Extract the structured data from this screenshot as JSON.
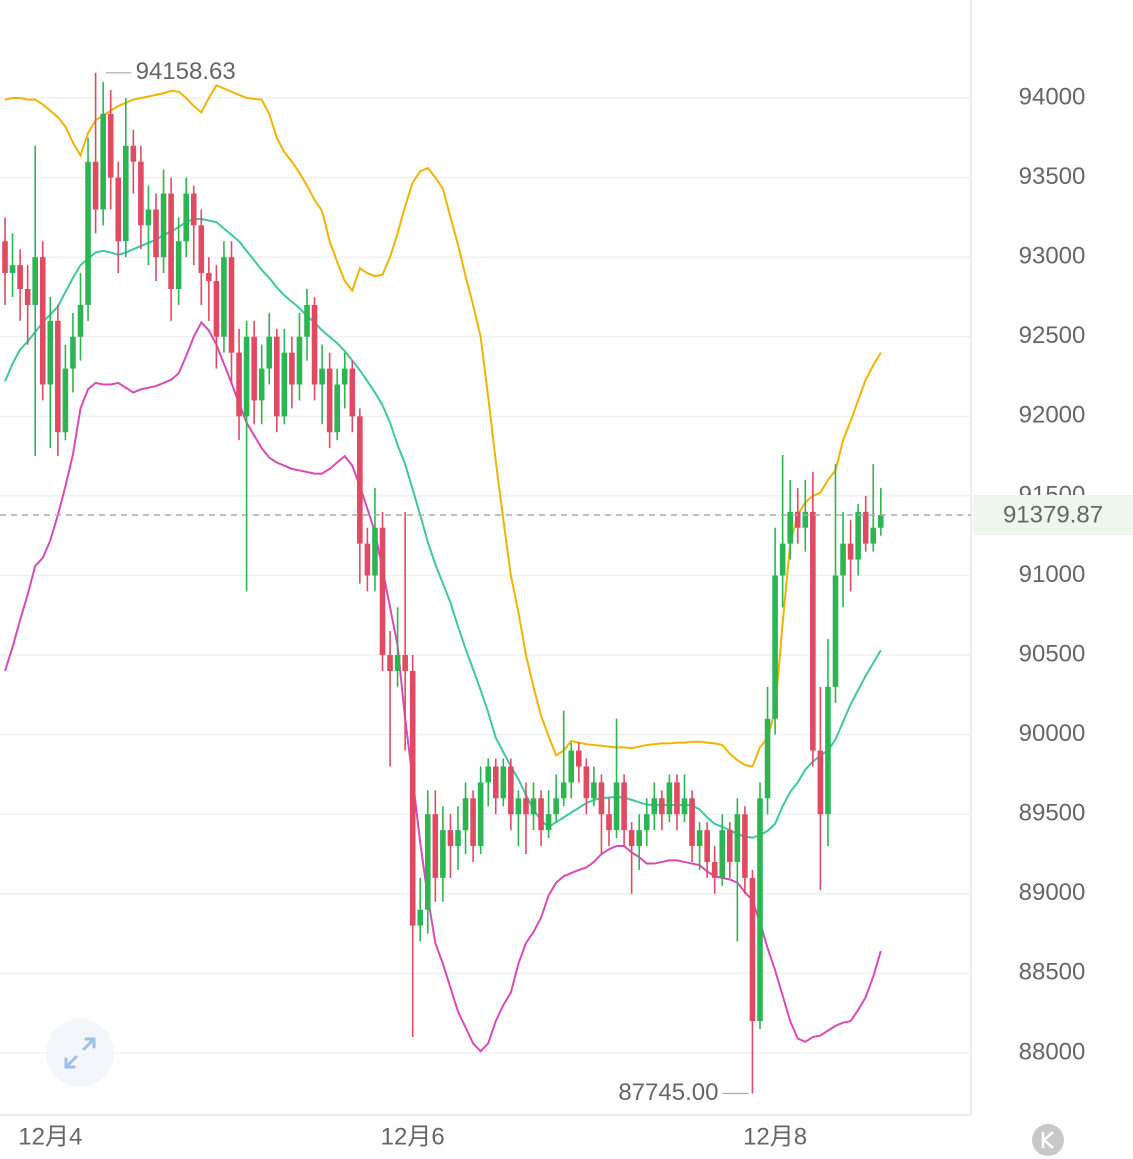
{
  "chart_data": {
    "type": "candlestick",
    "ylim": [
      87610,
      94616
    ],
    "yticks": [
      88000,
      88500,
      89000,
      89500,
      90000,
      90500,
      91000,
      91500,
      92000,
      92500,
      93000,
      93500,
      94000
    ],
    "grid": true,
    "up_color": "#2db553",
    "down_color": "#e04a63",
    "categories": [
      null,
      null,
      null,
      null,
      null,
      null,
      "12月4",
      null,
      null,
      null,
      null,
      null,
      null,
      null,
      null,
      null,
      null,
      null,
      null,
      null,
      null,
      null,
      null,
      null,
      null,
      null,
      null,
      null,
      null,
      null,
      null,
      null,
      null,
      null,
      null,
      null,
      null,
      null,
      null,
      null,
      null,
      null,
      null,
      null,
      null,
      null,
      null,
      null,
      null,
      null,
      null,
      null,
      null,
      null,
      "12月6",
      null,
      null,
      null,
      null,
      null,
      null,
      null,
      null,
      null,
      null,
      null,
      null,
      null,
      null,
      null,
      null,
      null,
      null,
      null,
      null,
      null,
      null,
      null,
      null,
      null,
      null,
      null,
      null,
      null,
      null,
      null,
      null,
      null,
      null,
      null,
      null,
      null,
      null,
      null,
      null,
      null,
      null,
      null,
      null,
      null,
      null,
      null,
      "12月8",
      null,
      null,
      null,
      null,
      null,
      null,
      null,
      null,
      null,
      null,
      null,
      null,
      null,
      null
    ],
    "ohlc": [
      [
        93100,
        93250,
        92700,
        92900
      ],
      [
        92900,
        93150,
        92750,
        92950
      ],
      [
        92950,
        93050,
        92600,
        92800
      ],
      [
        92800,
        92950,
        92450,
        92700
      ],
      [
        92700,
        93700,
        91750,
        93000
      ],
      [
        93000,
        93100,
        92100,
        92200
      ],
      [
        92200,
        92750,
        91800,
        92600
      ],
      [
        92600,
        92700,
        91750,
        91900
      ],
      [
        91900,
        92450,
        91850,
        92300
      ],
      [
        92300,
        92650,
        92150,
        92500
      ],
      [
        92500,
        92900,
        92350,
        92700
      ],
      [
        92700,
        93750,
        92600,
        93600
      ],
      [
        93600,
        94158.63,
        93150,
        93300
      ],
      [
        93300,
        94100,
        93200,
        93900
      ],
      [
        93900,
        94050,
        93300,
        93500
      ],
      [
        93500,
        93600,
        92900,
        93100
      ],
      [
        93100,
        94000,
        93000,
        93700
      ],
      [
        93700,
        93800,
        93400,
        93600
      ],
      [
        93600,
        93700,
        93050,
        93200
      ],
      [
        93200,
        93450,
        92950,
        93300
      ],
      [
        93300,
        93400,
        92850,
        93000
      ],
      [
        93000,
        93550,
        92900,
        93400
      ],
      [
        93400,
        93500,
        92600,
        92800
      ],
      [
        92800,
        93250,
        92700,
        93100
      ],
      [
        93100,
        93500,
        93000,
        93400
      ],
      [
        93400,
        93450,
        92950,
        93200
      ],
      [
        93200,
        93300,
        92700,
        92900
      ],
      [
        92900,
        93000,
        92600,
        92850
      ],
      [
        92850,
        92950,
        92300,
        92500
      ],
      [
        92500,
        93100,
        92400,
        93000
      ],
      [
        93000,
        93100,
        92200,
        92400
      ],
      [
        92400,
        92550,
        91850,
        92000
      ],
      [
        92000,
        92600,
        90900,
        92500
      ],
      [
        92500,
        92600,
        91950,
        92100
      ],
      [
        92100,
        92450,
        91950,
        92300
      ],
      [
        92300,
        92650,
        92200,
        92500
      ],
      [
        92500,
        92550,
        91900,
        92000
      ],
      [
        92000,
        92550,
        91950,
        92400
      ],
      [
        92400,
        92500,
        92050,
        92200
      ],
      [
        92200,
        92650,
        92100,
        92500
      ],
      [
        92500,
        92800,
        92350,
        92700
      ],
      [
        92700,
        92750,
        92100,
        92200
      ],
      [
        92200,
        92450,
        91950,
        92300
      ],
      [
        92300,
        92400,
        91800,
        91900
      ],
      [
        91900,
        92300,
        91850,
        92200
      ],
      [
        92200,
        92400,
        92050,
        92300
      ],
      [
        92300,
        92350,
        91900,
        92000
      ],
      [
        92000,
        92050,
        90950,
        91200
      ],
      [
        91200,
        91300,
        90900,
        91000
      ],
      [
        91000,
        91550,
        90900,
        91300
      ],
      [
        91300,
        91400,
        90400,
        90500
      ],
      [
        90500,
        90650,
        89800,
        90400
      ],
      [
        90400,
        90800,
        90300,
        90500
      ],
      [
        90500,
        91400,
        89900,
        90400
      ],
      [
        90400,
        90500,
        88100,
        88800
      ],
      [
        88800,
        89100,
        88700,
        88900
      ],
      [
        88900,
        89650,
        88750,
        89500
      ],
      [
        89500,
        89650,
        88950,
        89100
      ],
      [
        89100,
        89550,
        88950,
        89400
      ],
      [
        89400,
        89500,
        89100,
        89300
      ],
      [
        89300,
        89550,
        89150,
        89400
      ],
      [
        89400,
        89700,
        89250,
        89600
      ],
      [
        89600,
        89650,
        89200,
        89300
      ],
      [
        89300,
        89800,
        89250,
        89700
      ],
      [
        89700,
        89850,
        89550,
        89800
      ],
      [
        89800,
        89850,
        89500,
        89600
      ],
      [
        89600,
        89850,
        89550,
        89800
      ],
      [
        89800,
        89850,
        89400,
        89500
      ],
      [
        89500,
        89650,
        89300,
        89600
      ],
      [
        89600,
        89700,
        89250,
        89500
      ],
      [
        89500,
        89700,
        89400,
        89600
      ],
      [
        89600,
        89650,
        89300,
        89400
      ],
      [
        89400,
        89650,
        89350,
        89500
      ],
      [
        89500,
        89750,
        89450,
        89600
      ],
      [
        89600,
        90150,
        89550,
        89700
      ],
      [
        89700,
        89950,
        89600,
        89900
      ],
      [
        89900,
        89950,
        89700,
        89800
      ],
      [
        89800,
        89850,
        89500,
        89600
      ],
      [
        89600,
        89800,
        89550,
        89700
      ],
      [
        89700,
        89750,
        89250,
        89500
      ],
      [
        89500,
        89600,
        89300,
        89400
      ],
      [
        89400,
        90100,
        89350,
        89700
      ],
      [
        89700,
        89750,
        89300,
        89400
      ],
      [
        89400,
        89450,
        89000,
        89300
      ],
      [
        89300,
        89500,
        89150,
        89400
      ],
      [
        89400,
        89600,
        89300,
        89500
      ],
      [
        89500,
        89700,
        89400,
        89600
      ],
      [
        89600,
        89650,
        89400,
        89500
      ],
      [
        89500,
        89750,
        89450,
        89700
      ],
      [
        89700,
        89750,
        89400,
        89500
      ],
      [
        89500,
        89750,
        89450,
        89600
      ],
      [
        89600,
        89650,
        89200,
        89300
      ],
      [
        89300,
        89450,
        89150,
        89400
      ],
      [
        89400,
        89450,
        89100,
        89200
      ],
      [
        89200,
        89300,
        89000,
        89100
      ],
      [
        89100,
        89500,
        89050,
        89400
      ],
      [
        89400,
        89450,
        89100,
        89200
      ],
      [
        89200,
        89600,
        88700,
        89500
      ],
      [
        89500,
        89550,
        89000,
        89100
      ],
      [
        89100,
        89150,
        87745,
        88200
      ],
      [
        88200,
        89700,
        88150,
        89600
      ],
      [
        89600,
        90300,
        89500,
        90100
      ],
      [
        90100,
        91300,
        90000,
        91000
      ],
      [
        91000,
        91757,
        90800,
        91200
      ],
      [
        91200,
        91600,
        91100,
        91400
      ],
      [
        91400,
        91550,
        91200,
        91300
      ],
      [
        91300,
        91600,
        91150,
        91400
      ],
      [
        91400,
        91650,
        89800,
        89900
      ],
      [
        89900,
        90300,
        89024,
        89500
      ],
      [
        89500,
        90600,
        89300,
        90300
      ],
      [
        90300,
        91700,
        90200,
        91000
      ],
      [
        91000,
        91400,
        90800,
        91200
      ],
      [
        91200,
        91350,
        90900,
        91100
      ],
      [
        91100,
        91450,
        91000,
        91400
      ],
      [
        91400,
        91500,
        91150,
        91200
      ],
      [
        91200,
        91700,
        91150,
        91300
      ],
      [
        91300,
        91550,
        91250,
        91379.87
      ]
    ],
    "bands": [
      {
        "color": "#f0b400",
        "values": [
          93990,
          94000,
          94000,
          93990,
          93990,
          93960,
          93920,
          93880,
          93820,
          93720,
          93640,
          93780,
          93860,
          93890,
          93920,
          93950,
          93970,
          93990,
          94000,
          94010,
          94020,
          94030,
          94045,
          94040,
          94000,
          93950,
          93910,
          94000,
          94080,
          94060,
          94040,
          94020,
          94000,
          93995,
          93990,
          93900,
          93750,
          93660,
          93600,
          93530,
          93450,
          93360,
          93290,
          93100,
          92970,
          92850,
          92790,
          92930,
          92900,
          92880,
          92890,
          93000,
          93150,
          93320,
          93470,
          93540,
          93560,
          93500,
          93430,
          93250,
          93080,
          92880,
          92700,
          92500,
          92120,
          91720,
          91350,
          91000,
          90770,
          90500,
          90300,
          90120,
          89990,
          89870,
          89900,
          89960,
          89950,
          89940,
          89935,
          89930,
          89925,
          89920,
          89920,
          89915,
          89925,
          89935,
          89940,
          89945,
          89945,
          89950,
          89950,
          89955,
          89955,
          89950,
          89945,
          89935,
          89880,
          89840,
          89810,
          89800,
          89920,
          89980,
          90150,
          90700,
          91200,
          91380,
          91460,
          91500,
          91520,
          91600,
          91660,
          91850,
          91970,
          92100,
          92230,
          92320,
          92400
        ]
      },
      {
        "color": "#3cc8a0",
        "values": [
          92220,
          92330,
          92420,
          92470,
          92530,
          92590,
          92640,
          92690,
          92780,
          92870,
          92950,
          92990,
          93030,
          93040,
          93030,
          93015,
          93030,
          93050,
          93070,
          93090,
          93110,
          93140,
          93160,
          93190,
          93220,
          93240,
          93240,
          93230,
          93220,
          93180,
          93140,
          93100,
          93040,
          92980,
          92920,
          92870,
          92810,
          92760,
          92720,
          92680,
          92630,
          92590,
          92540,
          92500,
          92460,
          92410,
          92350,
          92290,
          92220,
          92150,
          92070,
          91960,
          91820,
          91700,
          91540,
          91380,
          91210,
          91070,
          90950,
          90830,
          90680,
          90540,
          90410,
          90280,
          90140,
          89980,
          89890,
          89800,
          89720,
          89620,
          89530,
          89460,
          89420,
          89450,
          89480,
          89510,
          89540,
          89570,
          89590,
          89600,
          89605,
          89608,
          89605,
          89590,
          89575,
          89560,
          89558,
          89558,
          89558,
          89558,
          89558,
          89555,
          89530,
          89480,
          89440,
          89420,
          89400,
          89375,
          89360,
          89352,
          89370,
          89395,
          89440,
          89550,
          89640,
          89700,
          89780,
          89830,
          89870,
          89900,
          89970,
          90080,
          90190,
          90280,
          90370,
          90450,
          90530
        ]
      },
      {
        "color": "#d94ab8",
        "values": [
          90400,
          90550,
          90720,
          90880,
          91060,
          91110,
          91220,
          91380,
          91560,
          91760,
          92050,
          92170,
          92210,
          92200,
          92200,
          92210,
          92180,
          92150,
          92170,
          92180,
          92190,
          92210,
          92230,
          92270,
          92380,
          92500,
          92590,
          92540,
          92450,
          92330,
          92210,
          92080,
          91960,
          91880,
          91800,
          91740,
          91710,
          91690,
          91670,
          91660,
          91650,
          91640,
          91640,
          91670,
          91710,
          91750,
          91690,
          91560,
          91420,
          91270,
          91040,
          90800,
          90560,
          90100,
          89720,
          89320,
          88980,
          88690,
          88560,
          88410,
          88260,
          88160,
          88060,
          88010,
          88060,
          88200,
          88300,
          88380,
          88560,
          88690,
          88760,
          88850,
          88990,
          89070,
          89110,
          89130,
          89150,
          89165,
          89200,
          89250,
          89280,
          89300,
          89300,
          89260,
          89230,
          89190,
          89190,
          89200,
          89210,
          89210,
          89200,
          89190,
          89180,
          89140,
          89110,
          89100,
          89090,
          89070,
          89010,
          88960,
          88820,
          88660,
          88520,
          88360,
          88200,
          88090,
          88070,
          88100,
          88110,
          88140,
          88170,
          88190,
          88200,
          88270,
          88350,
          88480,
          88640
        ]
      }
    ],
    "max_label": 94158.63,
    "min_label": {
      "value": 87745,
      "label": "87745.00"
    },
    "last_price": 91379.87
  }
}
